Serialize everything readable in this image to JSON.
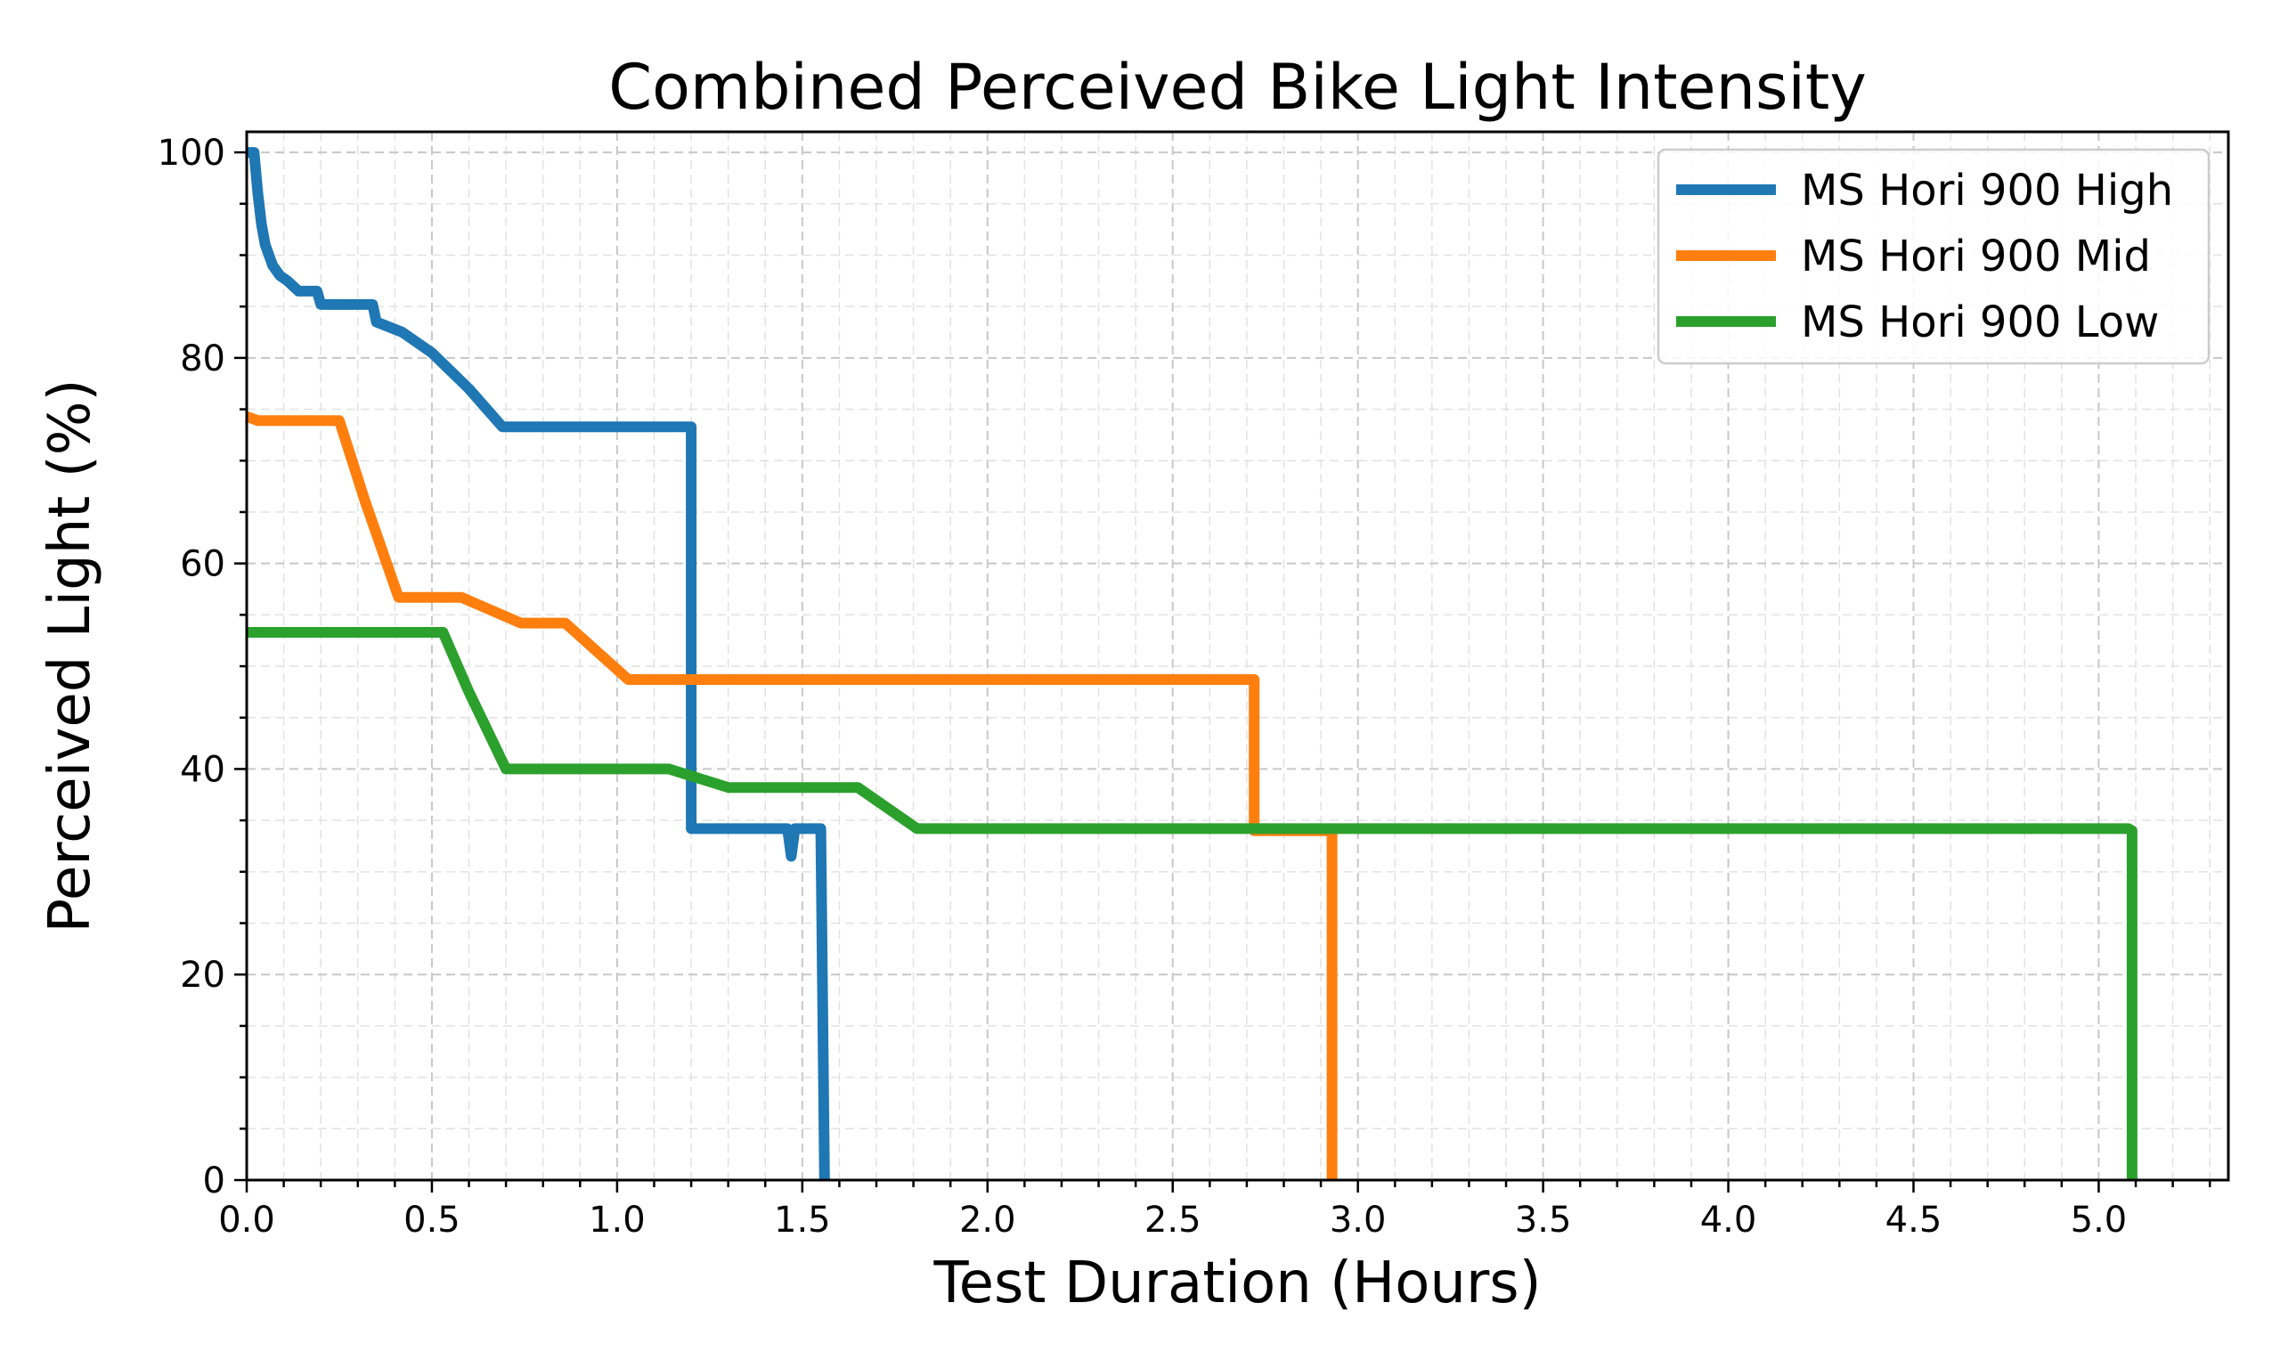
{
  "chart_data": {
    "type": "line",
    "title": "Combined Perceived Bike Light Intensity",
    "xlabel": "Test Duration (Hours)",
    "ylabel": "Perceived Light (%)",
    "xlim": [
      0,
      5.35
    ],
    "ylim": [
      0,
      102
    ],
    "xticks": [
      0.0,
      0.5,
      1.0,
      1.5,
      2.0,
      2.5,
      3.0,
      3.5,
      4.0,
      4.5,
      5.0
    ],
    "xtick_labels": [
      "0.0",
      "0.5",
      "1.0",
      "1.5",
      "2.0",
      "2.5",
      "3.0",
      "3.5",
      "4.0",
      "4.5",
      "5.0"
    ],
    "yticks": [
      0,
      20,
      40,
      60,
      80,
      100
    ],
    "ytick_labels": [
      "0",
      "20",
      "40",
      "60",
      "80",
      "100"
    ],
    "grid": true,
    "legend_position": "top-right",
    "series": [
      {
        "name": "MS Hori 900 High",
        "color": "#1f77b4",
        "points": [
          [
            0.0,
            100
          ],
          [
            0.02,
            100
          ],
          [
            0.03,
            96
          ],
          [
            0.04,
            93
          ],
          [
            0.05,
            91
          ],
          [
            0.07,
            89
          ],
          [
            0.09,
            88
          ],
          [
            0.11,
            87.5
          ],
          [
            0.14,
            86.5
          ],
          [
            0.19,
            86.5
          ],
          [
            0.2,
            85.2
          ],
          [
            0.34,
            85.2
          ],
          [
            0.35,
            83.5
          ],
          [
            0.42,
            82.5
          ],
          [
            0.5,
            80.5
          ],
          [
            0.6,
            77.0
          ],
          [
            0.69,
            73.3
          ],
          [
            1.2,
            73.3
          ],
          [
            1.2,
            34.2
          ],
          [
            1.46,
            34.2
          ],
          [
            1.47,
            31.5
          ],
          [
            1.48,
            34.2
          ],
          [
            1.55,
            34.2
          ],
          [
            1.56,
            0
          ]
        ]
      },
      {
        "name": "MS Hori 900 Mid",
        "color": "#ff7f0e",
        "points": [
          [
            0.0,
            74.3
          ],
          [
            0.03,
            73.9
          ],
          [
            0.25,
            73.9
          ],
          [
            0.32,
            66.0
          ],
          [
            0.41,
            56.7
          ],
          [
            0.58,
            56.7
          ],
          [
            0.74,
            54.2
          ],
          [
            0.86,
            54.2
          ],
          [
            1.03,
            48.7
          ],
          [
            2.72,
            48.7
          ],
          [
            2.72,
            34.0
          ],
          [
            2.93,
            34.0
          ],
          [
            2.93,
            0
          ]
        ]
      },
      {
        "name": "MS Hori 900 Low",
        "color": "#2ca02c",
        "points": [
          [
            0.0,
            53.3
          ],
          [
            0.53,
            53.3
          ],
          [
            0.6,
            47.5
          ],
          [
            0.7,
            40.0
          ],
          [
            1.14,
            40.0
          ],
          [
            1.3,
            38.2
          ],
          [
            1.65,
            38.2
          ],
          [
            1.81,
            34.2
          ],
          [
            5.08,
            34.2
          ],
          [
            5.09,
            34.0
          ],
          [
            5.09,
            0
          ]
        ]
      }
    ]
  }
}
